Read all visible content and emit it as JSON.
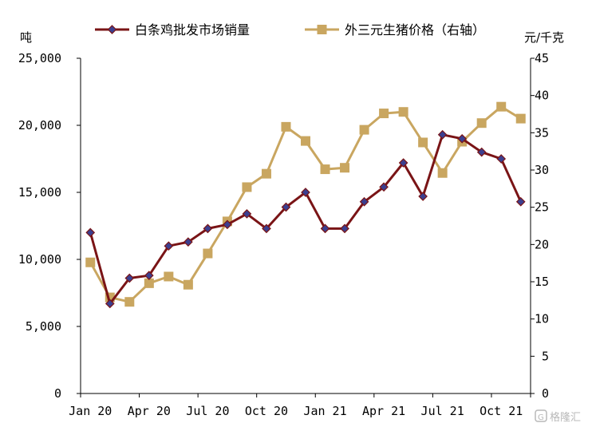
{
  "chart_data": {
    "type": "line",
    "title": "",
    "left_unit": "吨",
    "right_unit": "元/千克",
    "x": [
      "Jan 20",
      "Feb 20",
      "Mar 20",
      "Apr 20",
      "May 20",
      "Jun 20",
      "Jul 20",
      "Aug 20",
      "Sep 20",
      "Oct 20",
      "Nov 20",
      "Dec 20",
      "Jan 21",
      "Feb 21",
      "Mar 21",
      "Apr 21",
      "May 21",
      "Jun 21",
      "Jul 21",
      "Aug 21",
      "Sep 21",
      "Oct 21",
      "Nov 21"
    ],
    "x_tick_labels": [
      "Jan 20",
      "Apr 20",
      "Jul 20",
      "Oct 20",
      "Jan 21",
      "Apr 21",
      "Jul 21",
      "Oct 21"
    ],
    "x_tick_index": [
      0,
      3,
      6,
      9,
      12,
      15,
      18,
      21
    ],
    "y_left_ticks": [
      "0",
      "5,000",
      "10,000",
      "15,000",
      "20,000",
      "25,000"
    ],
    "y_left_range": [
      0,
      25000
    ],
    "y_right_ticks": [
      "0",
      "5",
      "10",
      "15",
      "20",
      "25",
      "30",
      "35",
      "40",
      "45"
    ],
    "y_right_range": [
      0,
      45
    ],
    "grid": false,
    "legend_position": "top",
    "series": [
      {
        "name": "白条鸡批发市场销量",
        "axis": "left",
        "color": "#7a1416",
        "marker": "diamond",
        "values": [
          12000,
          6700,
          8600,
          8800,
          11000,
          11300,
          12300,
          12600,
          13400,
          12300,
          13900,
          15000,
          12300,
          12300,
          14300,
          15400,
          17200,
          14700,
          19300,
          19000,
          18000,
          17500,
          14300
        ]
      },
      {
        "name": "外三元生猪价格（右轴）",
        "axis": "right",
        "color": "#c9a660",
        "marker": "square",
        "values": [
          17.6,
          12.9,
          12.3,
          14.8,
          15.7,
          14.6,
          18.8,
          23.1,
          27.7,
          29.5,
          35.8,
          33.9,
          30.1,
          30.3,
          35.4,
          37.6,
          37.8,
          33.7,
          29.6,
          33.8,
          36.3,
          38.5,
          36.9
        ]
      }
    ]
  },
  "watermark": {
    "text": "格隆汇",
    "icon": "logo-icon"
  }
}
